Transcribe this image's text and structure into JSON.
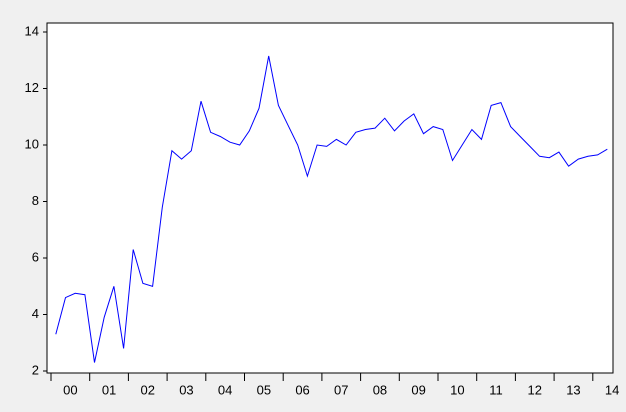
{
  "chart_data": {
    "type": "line",
    "x_labels": [
      "00",
      "01",
      "02",
      "03",
      "04",
      "05",
      "06",
      "07",
      "08",
      "09",
      "10",
      "11",
      "12",
      "13",
      "14"
    ],
    "values": [
      3.3,
      4.6,
      4.75,
      4.7,
      2.3,
      3.9,
      5.0,
      2.8,
      6.3,
      5.1,
      5.0,
      7.8,
      9.8,
      9.5,
      9.8,
      11.55,
      10.45,
      10.3,
      10.1,
      10.0,
      10.5,
      11.3,
      13.15,
      11.4,
      10.7,
      10.0,
      8.9,
      10.0,
      9.95,
      10.2,
      10.0,
      10.45,
      10.55,
      10.6,
      10.95,
      10.5,
      10.85,
      11.1,
      10.4,
      10.65,
      10.55,
      9.45,
      10.0,
      10.55,
      10.2,
      11.4,
      11.5,
      10.65,
      10.3,
      9.95,
      9.6,
      9.55,
      9.75,
      9.25,
      9.5,
      9.6,
      9.65,
      9.85
    ],
    "color": "#0000ff",
    "ylim": [
      2,
      14
    ],
    "yticks": [
      2,
      4,
      6,
      8,
      10,
      12,
      14
    ]
  }
}
